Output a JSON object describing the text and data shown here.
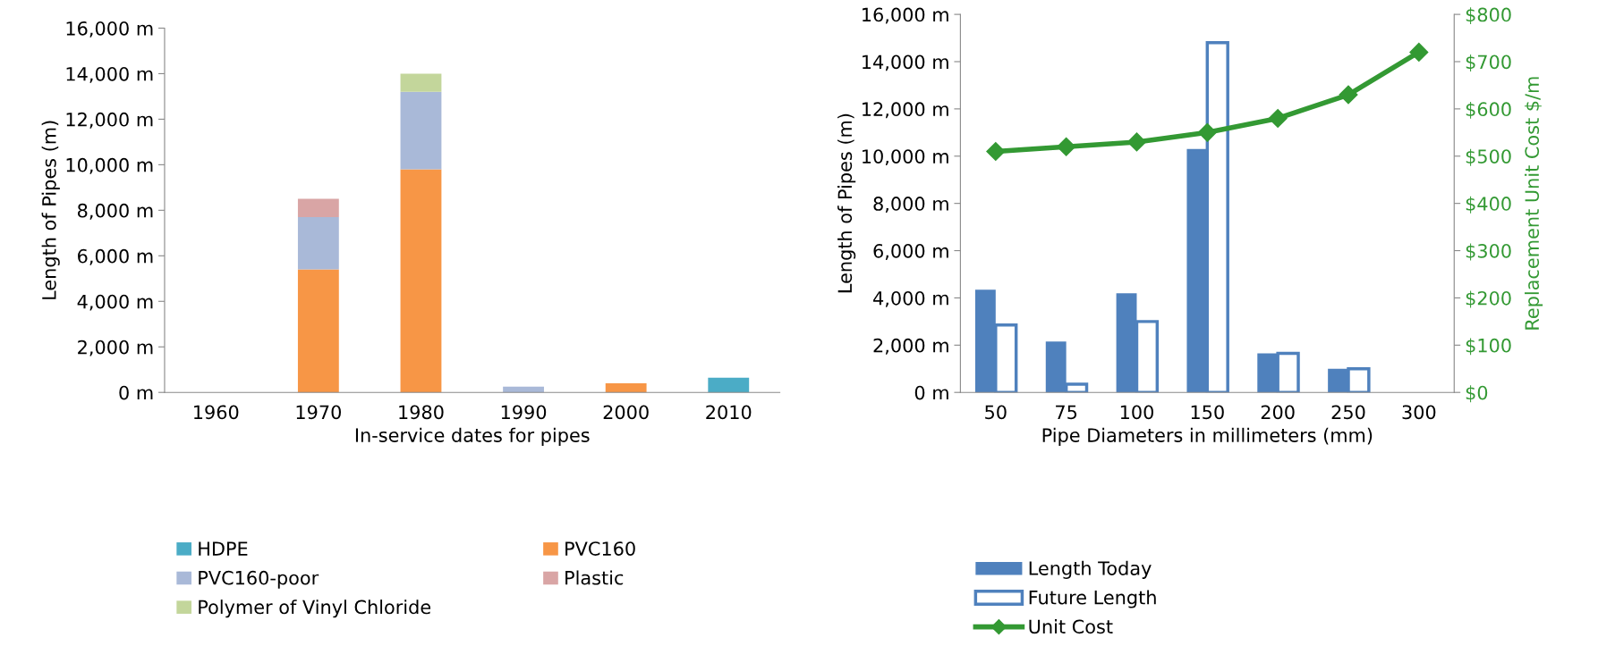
{
  "chart_data": [
    {
      "type": "bar",
      "stacked": true,
      "xlabel": "In-service dates for pipes",
      "ylabel": "Length of Pipes (m)",
      "categories": [
        "1960",
        "1970",
        "1980",
        "1990",
        "2000",
        "2010"
      ],
      "series": [
        {
          "name": "HDPE",
          "color": "#4bacc6",
          "values": [
            null,
            null,
            null,
            null,
            null,
            650
          ]
        },
        {
          "name": "PVC160",
          "color": "#f79646",
          "values": [
            null,
            5400,
            9800,
            null,
            400,
            null
          ]
        },
        {
          "name": "PVC160-poor",
          "color": "#a9b9d8",
          "values": [
            null,
            2300,
            3400,
            250,
            null,
            null
          ]
        },
        {
          "name": "Plastic",
          "color": "#d9a5a5",
          "values": [
            null,
            800,
            null,
            null,
            null,
            null
          ]
        },
        {
          "name": "Polymer of Vinyl Chloride",
          "color": "#c3d69b",
          "values": [
            null,
            null,
            800,
            null,
            null,
            null
          ]
        }
      ],
      "ylim": [
        0,
        16000
      ],
      "yticks": [
        {
          "value": 0,
          "label": "0 m"
        },
        {
          "value": 2000,
          "label": "2,000 m"
        },
        {
          "value": 4000,
          "label": "4,000 m"
        },
        {
          "value": 6000,
          "label": "6,000 m"
        },
        {
          "value": 8000,
          "label": "8,000 m"
        },
        {
          "value": 10000,
          "label": "10,000 m"
        },
        {
          "value": 12000,
          "label": "12,000 m"
        },
        {
          "value": 14000,
          "label": "14,000 m"
        },
        {
          "value": 16000,
          "label": "16,000 m"
        }
      ],
      "grid": false,
      "legend": "bottom"
    },
    {
      "type": "bar",
      "xlabel": "Pipe Diameters in millimeters (mm)",
      "ylabel": "Length of Pipes (m)",
      "y2label": "Replacement Unit Cost $/m",
      "categories": [
        "50",
        "75",
        "100",
        "150",
        "200",
        "250",
        "300"
      ],
      "series": [
        {
          "name": "Length Today",
          "color": "#4f81bd",
          "values": [
            4350,
            2150,
            4200,
            10300,
            1650,
            1000,
            null
          ]
        },
        {
          "name": "Future Length",
          "color": "#4f81bd",
          "values": [
            2850,
            350,
            3000,
            14800,
            1650,
            1000,
            null
          ]
        },
        {
          "name": "Unit Cost",
          "type": "line",
          "axis": "y2",
          "color": "#339933",
          "marker": "diamond",
          "values": [
            510,
            520,
            530,
            550,
            580,
            630,
            720
          ]
        }
      ],
      "ylim": [
        0,
        16000
      ],
      "yticks": [
        {
          "value": 0,
          "label": "0 m"
        },
        {
          "value": 2000,
          "label": "2,000 m"
        },
        {
          "value": 4000,
          "label": "4,000 m"
        },
        {
          "value": 6000,
          "label": "6,000 m"
        },
        {
          "value": 8000,
          "label": "8,000 m"
        },
        {
          "value": 10000,
          "label": "10,000 m"
        },
        {
          "value": 12000,
          "label": "12,000 m"
        },
        {
          "value": 14000,
          "label": "14,000 m"
        },
        {
          "value": 16000,
          "label": "16,000 m"
        }
      ],
      "y2lim": [
        0,
        800
      ],
      "y2ticks": [
        {
          "value": 0,
          "label": "$0"
        },
        {
          "value": 100,
          "label": "$100"
        },
        {
          "value": 200,
          "label": "$200"
        },
        {
          "value": 300,
          "label": "$300"
        },
        {
          "value": 400,
          "label": "$400"
        },
        {
          "value": 500,
          "label": "$500"
        },
        {
          "value": 600,
          "label": "$600"
        },
        {
          "value": 700,
          "label": "$700"
        },
        {
          "value": 800,
          "label": "$800"
        }
      ],
      "grid": false,
      "legend": "bottom"
    }
  ]
}
